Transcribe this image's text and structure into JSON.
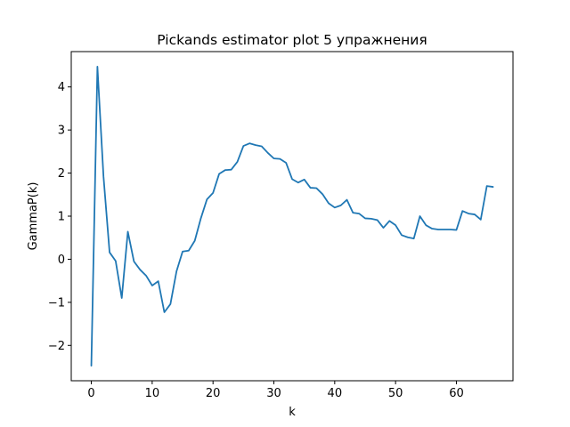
{
  "chart_data": {
    "type": "line",
    "title": "Pickands estimator plot 5 упражнения",
    "xlabel": "k",
    "ylabel": "GammaP(k)",
    "xlim": [
      -3.3,
      69.3
    ],
    "ylim": [
      -2.82,
      4.82
    ],
    "xticks": [
      0,
      10,
      20,
      30,
      40,
      50,
      60
    ],
    "yticks": [
      -2,
      -1,
      0,
      1,
      2,
      3,
      4
    ],
    "xtick_labels": [
      "0",
      "10",
      "20",
      "30",
      "40",
      "50",
      "60"
    ],
    "ytick_labels": [
      "−2",
      "−1",
      "0",
      "1",
      "2",
      "3",
      "4"
    ],
    "grid": false,
    "series": [
      {
        "color": "#1f77b4",
        "x": [
          0,
          1,
          2,
          3,
          4,
          5,
          6,
          7,
          8,
          9,
          10,
          11,
          12,
          13,
          14,
          15,
          16,
          17,
          18,
          19,
          20,
          21,
          22,
          23,
          24,
          25,
          26,
          27,
          28,
          29,
          30,
          31,
          32,
          33,
          34,
          35,
          36,
          37,
          38,
          39,
          40,
          41,
          42,
          43,
          44,
          45,
          46,
          47,
          48,
          49,
          50,
          51,
          52,
          53,
          54,
          55,
          56,
          57,
          58,
          59,
          60,
          61,
          62,
          63,
          64,
          65,
          66
        ],
        "y": [
          -2.47,
          4.47,
          1.92,
          0.16,
          -0.04,
          -0.9,
          0.64,
          -0.05,
          -0.24,
          -0.38,
          -0.61,
          -0.51,
          -1.23,
          -1.04,
          -0.28,
          0.18,
          0.2,
          0.43,
          0.95,
          1.39,
          1.54,
          1.98,
          2.07,
          2.08,
          2.26,
          2.63,
          2.69,
          2.65,
          2.62,
          2.47,
          2.34,
          2.33,
          2.24,
          1.86,
          1.78,
          1.85,
          1.66,
          1.65,
          1.51,
          1.3,
          1.2,
          1.25,
          1.38,
          1.08,
          1.06,
          0.95,
          0.94,
          0.91,
          0.73,
          0.89,
          0.79,
          0.56,
          0.51,
          0.48,
          1.0,
          0.79,
          0.71,
          0.69,
          0.69,
          0.69,
          0.68,
          1.12,
          1.06,
          1.04,
          0.92,
          1.7,
          1.68
        ]
      }
    ]
  }
}
